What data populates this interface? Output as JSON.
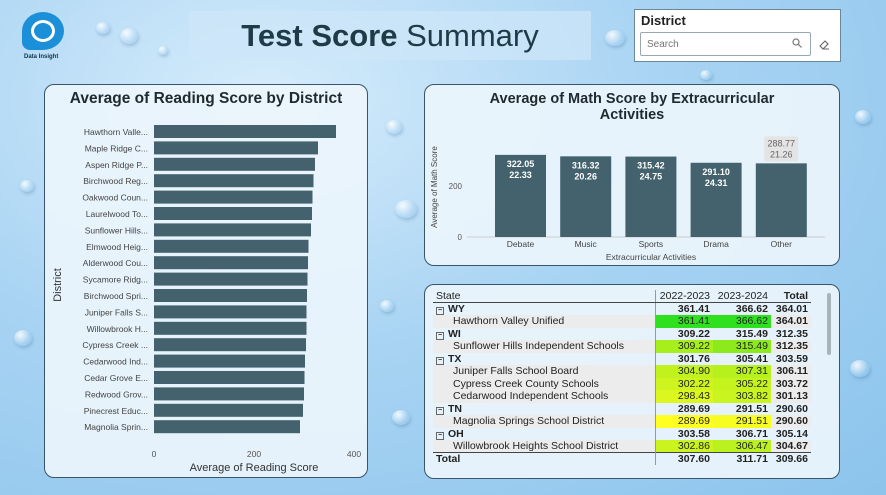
{
  "header": {
    "logo_text": "Data Insight",
    "title_bold": "Test Score",
    "title_rest": " Summary"
  },
  "slicer": {
    "title": "District",
    "placeholder": "Search"
  },
  "reading_chart": {
    "title": "Average of Reading Score by District",
    "xlabel": "Average of Reading Score",
    "ylabel": "District",
    "ticks": [
      "0",
      "200",
      "400"
    ],
    "color": "#44626d"
  },
  "math_chart": {
    "title_line1": "Average of Math Score by Extracurricular",
    "title_line2": "Activities",
    "xlabel": "Extracurricular Activities",
    "ylabel": "Average of Math Score",
    "ticks": [
      "0",
      "200"
    ],
    "color": "#44626d"
  },
  "chart_data": [
    {
      "type": "bar",
      "orientation": "horizontal",
      "title": "Average of Reading Score by District",
      "xlabel": "Average of Reading Score",
      "ylabel": "District",
      "xlim": [
        0,
        400
      ],
      "categories": [
        "Hawthorn Valle...",
        "Maple Ridge C...",
        "Aspen Ridge P...",
        "Birchwood Reg...",
        "Oakwood Coun...",
        "Laurelwood To...",
        "Sunflower Hills...",
        "Elmwood Heig...",
        "Alderwood Cou...",
        "Sycamore Ridg...",
        "Birchwood Spri...",
        "Juniper Falls S...",
        "Willowbrook H...",
        "Cypress Creek ...",
        "Cedarwood Ind...",
        "Cedar Grove E...",
        "Redwood Grov...",
        "Pinecrest Educ...",
        "Magnolia Sprin..."
      ],
      "values": [
        364,
        328,
        322,
        319,
        317,
        316,
        314,
        309,
        308,
        307,
        306,
        305,
        305,
        304,
        302,
        301,
        300,
        298,
        292
      ]
    },
    {
      "type": "bar",
      "title": "Average of Math Score by Extracurricular Activities",
      "xlabel": "Extracurricular Activities",
      "ylabel": "Average of Math Score",
      "ylim": [
        0,
        340
      ],
      "categories": [
        "Debate",
        "Music",
        "Sports",
        "Drama",
        "Other"
      ],
      "values": [
        322.05,
        316.32,
        315.42,
        291.1,
        288.77
      ],
      "secondary_labels": [
        "22.33",
        "20.26",
        "24.75",
        "24.31",
        "21.26"
      ]
    }
  ],
  "matrix": {
    "headers": [
      "State",
      "2022-2023",
      "2023-2024",
      "Total"
    ],
    "rows": [
      {
        "kind": "state",
        "name": "WY",
        "v1": "361.41",
        "v2": "366.62",
        "total": "364.01"
      },
      {
        "kind": "dist",
        "name": "Hawthorn Valley Unified",
        "v1": "361.41",
        "v2": "366.62",
        "total": "364.01",
        "c1": "#2fe01f",
        "c2": "#2fe01f"
      },
      {
        "kind": "state",
        "name": "WI",
        "v1": "309.22",
        "v2": "315.49",
        "total": "312.35"
      },
      {
        "kind": "dist",
        "name": "Sunflower Hills Independent Schools",
        "v1": "309.22",
        "v2": "315.49",
        "total": "312.35",
        "c1": "#a6ef1d",
        "c2": "#8be91c"
      },
      {
        "kind": "state",
        "name": "TX",
        "v1": "301.76",
        "v2": "305.41",
        "total": "303.59"
      },
      {
        "kind": "dist",
        "name": "Juniper Falls School Board",
        "v1": "304.90",
        "v2": "307.31",
        "total": "306.11",
        "c1": "#c2f21e",
        "c2": "#b6f01d"
      },
      {
        "kind": "dist",
        "name": "Cypress Creek County Schools",
        "v1": "302.22",
        "v2": "305.22",
        "total": "303.72",
        "c1": "#cdf41f",
        "c2": "#c4f31e"
      },
      {
        "kind": "dist",
        "name": "Cedarwood Independent Schools",
        "v1": "298.43",
        "v2": "303.82",
        "total": "301.13",
        "c1": "#dcf620",
        "c2": "#c9f41f"
      },
      {
        "kind": "state",
        "name": "TN",
        "v1": "289.69",
        "v2": "291.51",
        "total": "290.60"
      },
      {
        "kind": "dist",
        "name": "Magnolia Springs School District",
        "v1": "289.69",
        "v2": "291.51",
        "total": "290.60",
        "c1": "#ffff21",
        "c2": "#f7fd21"
      },
      {
        "kind": "state",
        "name": "OH",
        "v1": "303.58",
        "v2": "306.71",
        "total": "305.14"
      },
      {
        "kind": "dist",
        "name": "Willowbrook Heights School District",
        "v1": "302.86",
        "v2": "306.47",
        "total": "304.67",
        "c1": "#cbf41f",
        "c2": "#baf11e"
      }
    ],
    "total": {
      "name": "Total",
      "v1": "307.60",
      "v2": "311.71",
      "total": "309.66"
    }
  }
}
